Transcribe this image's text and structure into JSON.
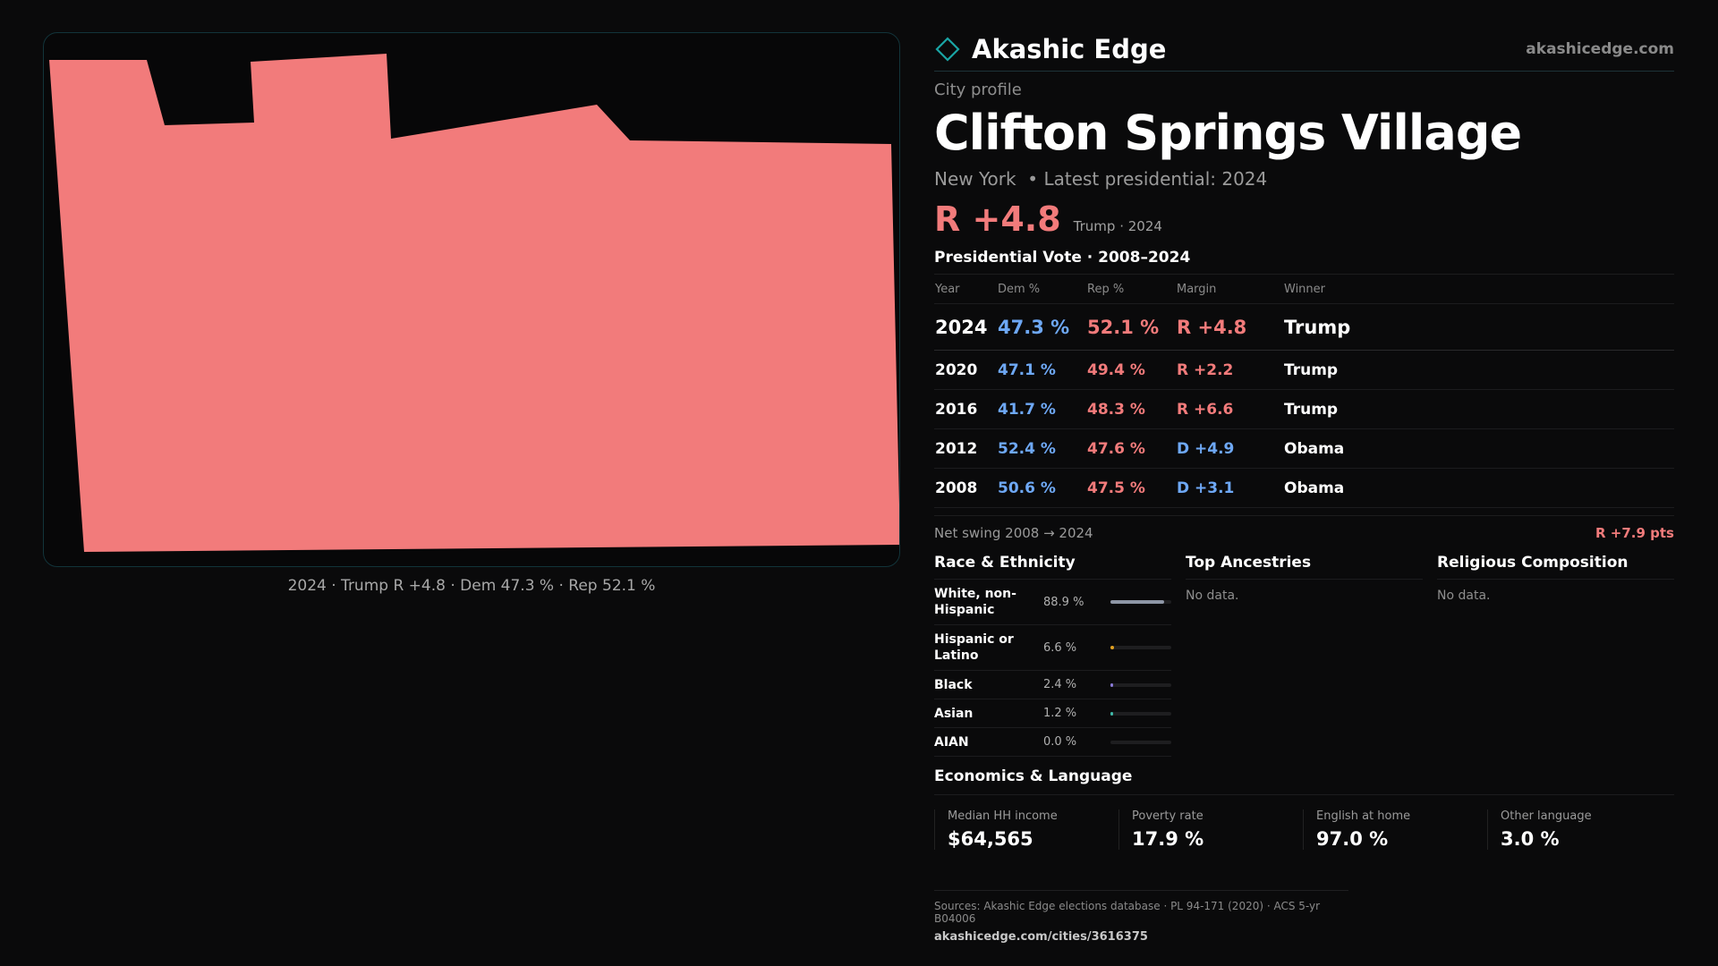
{
  "brand": {
    "name": "Akashic Edge",
    "url": "akashicedge.com"
  },
  "colors": {
    "dem": "#6ea8f5",
    "rep": "#f27b7b",
    "accent": "#1aa5a5",
    "map_fill": "#f27b7b"
  },
  "icon": "diamond-logo-icon",
  "eyebrow": "City profile",
  "city": "Clifton Springs Village",
  "subline": "New York  • Latest presidential: 2024",
  "headline": {
    "margin": "R +4.8",
    "note": "Trump · 2024"
  },
  "map": {
    "caption": "2024 · Trump  R +4.8 · Dem 47.3 % · Rep 52.1 %"
  },
  "vote": {
    "title": "Presidential Vote · 2008–2024",
    "headers": {
      "year": "Year",
      "dem": "Dem %",
      "rep": "Rep %",
      "margin": "Margin",
      "winner": "Winner"
    },
    "rows": [
      {
        "year": "2024",
        "dem": "47.3 %",
        "rep": "52.1 %",
        "margin": "R +4.8",
        "party": "rep",
        "winner": "Trump"
      },
      {
        "year": "2020",
        "dem": "47.1 %",
        "rep": "49.4 %",
        "margin": "R +2.2",
        "party": "rep",
        "winner": "Trump"
      },
      {
        "year": "2016",
        "dem": "41.7 %",
        "rep": "48.3 %",
        "margin": "R +6.6",
        "party": "rep",
        "winner": "Trump"
      },
      {
        "year": "2012",
        "dem": "52.4 %",
        "rep": "47.6 %",
        "margin": "D +4.9",
        "party": "dem",
        "winner": "Obama"
      },
      {
        "year": "2008",
        "dem": "50.6 %",
        "rep": "47.5 %",
        "margin": "D +3.1",
        "party": "dem",
        "winner": "Obama"
      }
    ]
  },
  "swing": {
    "label": "Net swing 2008 → 2024",
    "value": "R +7.9 pts"
  },
  "race": {
    "title": "Race & Ethnicity",
    "rows": [
      {
        "label": "White, non-Hispanic",
        "pct": "88.9 %",
        "value": 88.9,
        "color": "#8e96a6"
      },
      {
        "label": "Hispanic or Latino",
        "pct": "6.6 %",
        "value": 6.6,
        "color": "#e0a020"
      },
      {
        "label": "Black",
        "pct": "2.4 %",
        "value": 2.4,
        "color": "#8a7ad8"
      },
      {
        "label": "Asian",
        "pct": "1.2 %",
        "value": 1.2,
        "color": "#3fb8a8"
      },
      {
        "label": "AIAN",
        "pct": "0.0 %",
        "value": 0.0,
        "color": "#c06040"
      }
    ]
  },
  "ancestry": {
    "title": "Top Ancestries",
    "empty": "No data."
  },
  "religion": {
    "title": "Religious Composition",
    "empty": "No data."
  },
  "economics": {
    "title": "Economics & Language",
    "cards": [
      {
        "label": "Median HH income",
        "value": "$64,565"
      },
      {
        "label": "Poverty rate",
        "value": "17.9 %"
      },
      {
        "label": "English at home",
        "value": "97.0 %"
      },
      {
        "label": "Other language",
        "value": "3.0 %"
      }
    ]
  },
  "footer": {
    "sources": "Sources: Akashic Edge elections database · PL 94-171 (2020) · ACS 5-yr B04006",
    "url": "akashicedge.com/cities/3616375"
  }
}
